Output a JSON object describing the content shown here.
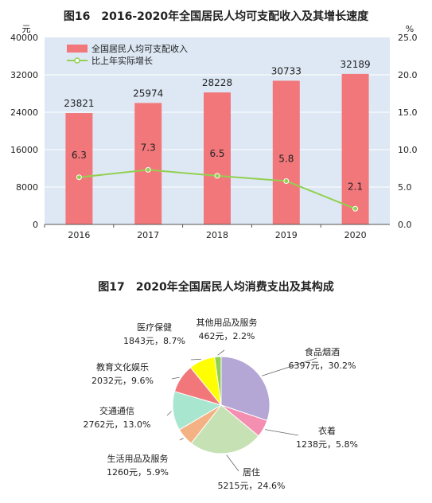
{
  "chart_data": [
    {
      "type": "bar",
      "title": "图16　2016-2020年全国居民人均可支配收入及其增长速度",
      "left_unit": "元",
      "right_unit": "%",
      "categories": [
        "2016",
        "2017",
        "2018",
        "2019",
        "2020"
      ],
      "series": [
        {
          "name": "全国居民人均可支配收入",
          "kind": "bar",
          "axis": "left",
          "values": [
            23821,
            25974,
            28228,
            30733,
            32189
          ],
          "labels": [
            "23821",
            "25974",
            "28228",
            "30733",
            "32189"
          ]
        },
        {
          "name": "比上年实际增长",
          "kind": "line",
          "axis": "right",
          "values": [
            6.3,
            7.3,
            6.5,
            5.8,
            2.1
          ],
          "labels": [
            "6.3",
            "7.3",
            "6.5",
            "5.8",
            "2.1"
          ]
        }
      ],
      "ylim_left": [
        0,
        40000
      ],
      "yticks_left": [
        "0",
        "8000",
        "16000",
        "24000",
        "32000",
        "40000"
      ],
      "ylim_right": [
        0,
        25
      ],
      "yticks_right": [
        "0.0",
        "5.0",
        "10.0",
        "15.0",
        "20.0",
        "25.0"
      ],
      "colors": {
        "bar": "#f2777a",
        "line": "#92d050",
        "plot_bg": "#dde8f4"
      },
      "grid": true,
      "legend": "top-left"
    },
    {
      "type": "pie",
      "title": "图17　2020年全国居民人均消费支出及其构成",
      "slices": [
        {
          "name": "食品烟酒",
          "value": 6397,
          "percent": 30.2,
          "label": "6397元，30.2%",
          "color": "#b4a7d6"
        },
        {
          "name": "衣着",
          "value": 1238,
          "percent": 5.8,
          "label": "1238元，5.8%",
          "color": "#f48fb1"
        },
        {
          "name": "居住",
          "value": 5215,
          "percent": 24.6,
          "label": "5215元，24.6%",
          "color": "#c6e2b4"
        },
        {
          "name": "生活用品及服务",
          "value": 1260,
          "percent": 5.9,
          "label": "1260元，5.9%",
          "color": "#f4b183"
        },
        {
          "name": "交通通信",
          "value": 2762,
          "percent": 13.0,
          "label": "2762元，13.0%",
          "color": "#a8e6cf"
        },
        {
          "name": "教育文化娱乐",
          "value": 2032,
          "percent": 9.6,
          "label": "2032元，9.6%",
          "color": "#f2777a"
        },
        {
          "name": "医疗保健",
          "value": 1843,
          "percent": 8.7,
          "label": "1843元，8.7%",
          "color": "#ffff00"
        },
        {
          "name": "其他用品及服务",
          "value": 462,
          "percent": 2.2,
          "label": "462元，2.2%",
          "color": "#92d050"
        }
      ]
    }
  ]
}
